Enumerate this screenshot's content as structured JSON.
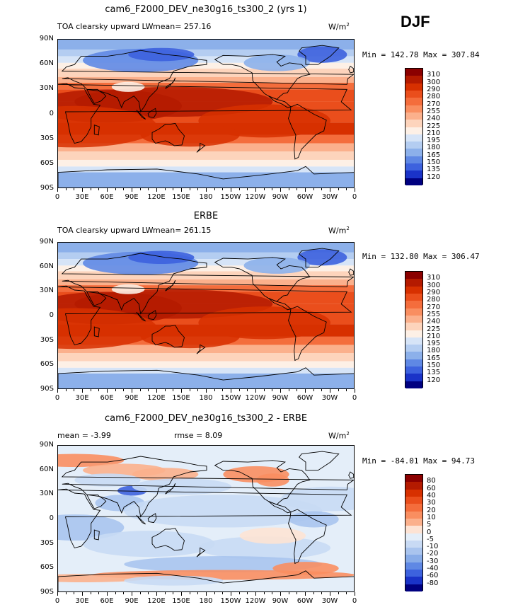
{
  "season": "DJF",
  "units": "W/m²",
  "lon_ticks": [
    "0",
    "30E",
    "60E",
    "90E",
    "120E",
    "150E",
    "180",
    "150W",
    "120W",
    "90W",
    "60W",
    "30W",
    "0"
  ],
  "lat_ticks": [
    "90N",
    "60N",
    "30N",
    "0",
    "30S",
    "60S",
    "90S"
  ],
  "panels": [
    {
      "title": "cam6_F2000_DEV_ne30g16_ts300_2 (yrs 1)",
      "left_text": "TOA clearsky upward LW",
      "mean_text": "mean= 257.16",
      "rmse_text": "",
      "minmax": "Min = 142.78 Max = 307.84",
      "levels": [
        "310",
        "300",
        "290",
        "280",
        "270",
        "255",
        "240",
        "225",
        "210",
        "195",
        "180",
        "165",
        "150",
        "135",
        "120"
      ],
      "colors": [
        "#8b0000",
        "#b41a00",
        "#d73000",
        "#ea4e1c",
        "#f46d3c",
        "#f98e60",
        "#fbb08c",
        "#fdd4bc",
        "#fdf0e6",
        "#d6e4f7",
        "#b4cdf1",
        "#8cb0ea",
        "#5f88e4",
        "#3d62de",
        "#1a33c8",
        "#000080"
      ],
      "kind": "abs"
    },
    {
      "title": "ERBE",
      "left_text": "TOA clearsky upward LW",
      "mean_text": "mean= 261.15",
      "rmse_text": "",
      "minmax": "Min = 132.80 Max = 306.47",
      "levels": [
        "310",
        "300",
        "290",
        "280",
        "270",
        "255",
        "240",
        "225",
        "210",
        "195",
        "180",
        "165",
        "150",
        "135",
        "120"
      ],
      "colors": [
        "#8b0000",
        "#b41a00",
        "#d73000",
        "#ea4e1c",
        "#f46d3c",
        "#f98e60",
        "#fbb08c",
        "#fdd4bc",
        "#fdf0e6",
        "#d6e4f7",
        "#b4cdf1",
        "#8cb0ea",
        "#5f88e4",
        "#3d62de",
        "#1a33c8",
        "#000080"
      ],
      "kind": "abs"
    },
    {
      "title": "cam6_F2000_DEV_ne30g16_ts300_2 - ERBE",
      "left_text": "mean =   -3.99",
      "mean_text": "rmse =    8.09",
      "rmse_text": "",
      "minmax": "Min = -84.01 Max =  94.73",
      "levels": [
        "80",
        "60",
        "40",
        "30",
        "20",
        "10",
        "5",
        "0",
        "-5",
        "-10",
        "-20",
        "-30",
        "-40",
        "-60",
        "-80"
      ],
      "colors": [
        "#8b0000",
        "#b41a00",
        "#d73000",
        "#ea4e1c",
        "#f46d3c",
        "#f98e60",
        "#fbb08c",
        "#fde3d4",
        "#e4eef9",
        "#c8daf4",
        "#a9c4ee",
        "#88ace8",
        "#5f88e4",
        "#3d62de",
        "#1a33c8",
        "#000080"
      ],
      "kind": "diff"
    }
  ]
}
